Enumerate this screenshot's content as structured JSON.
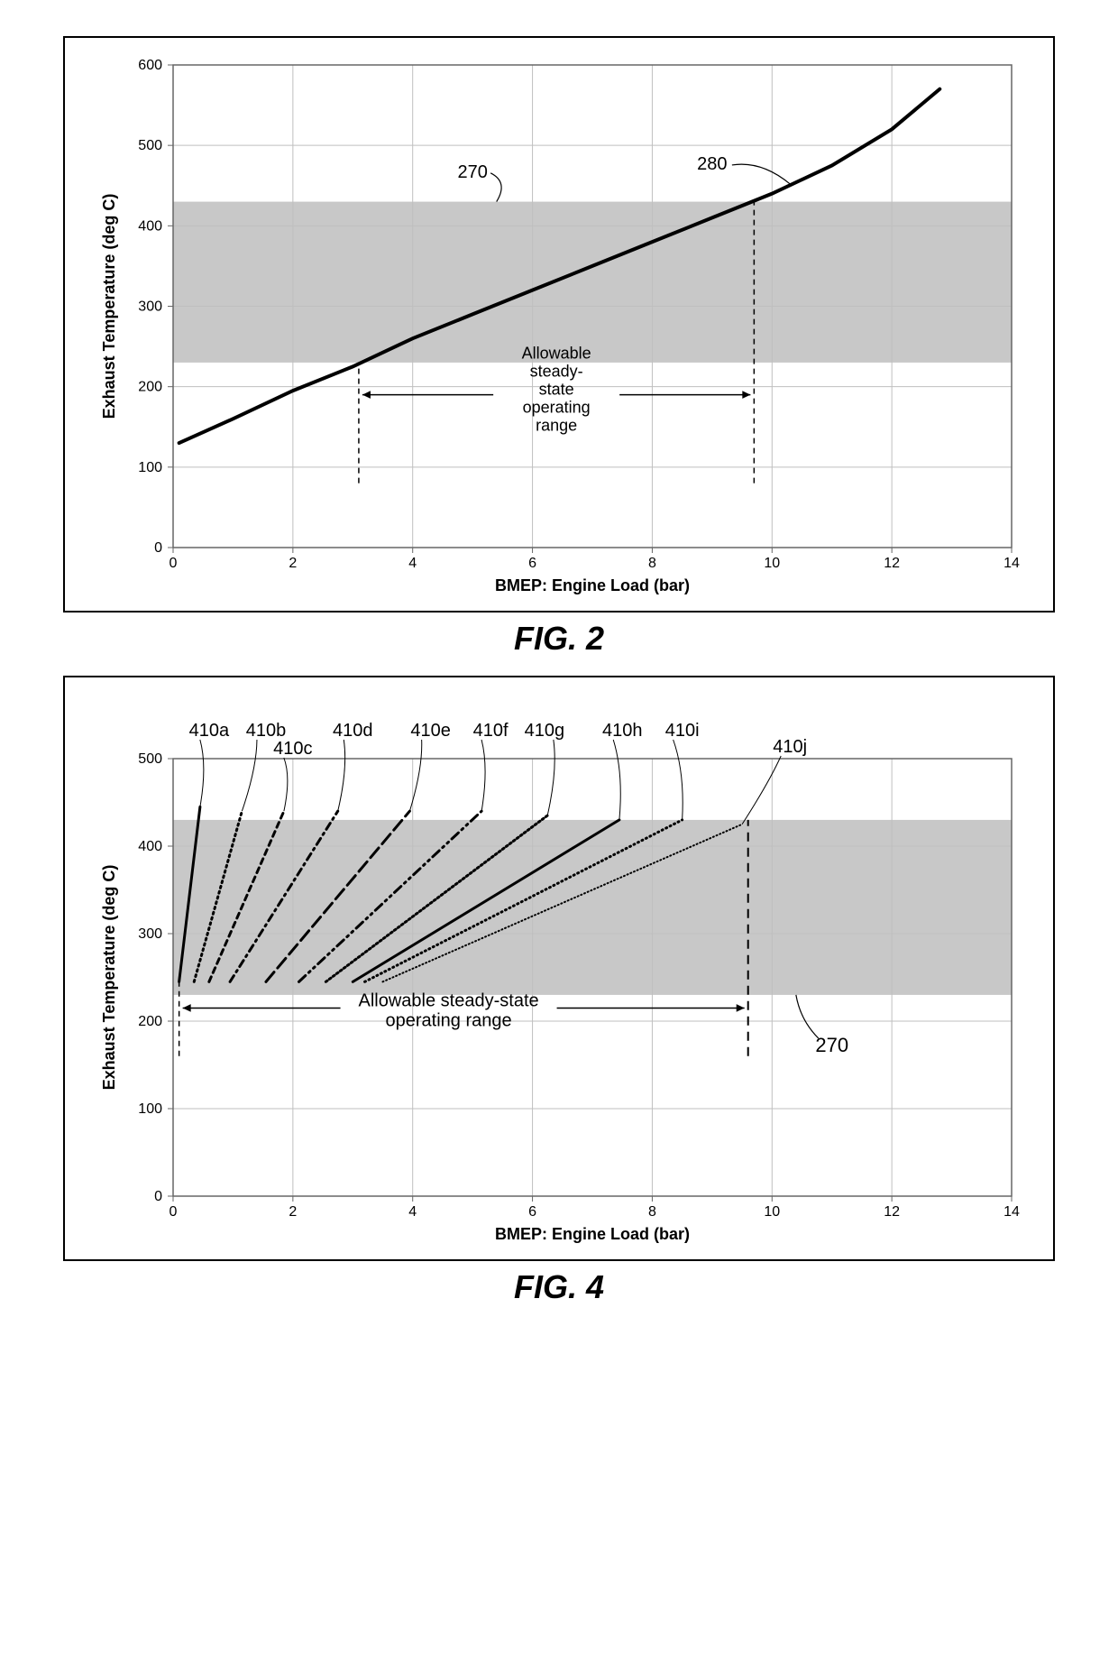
{
  "fig2": {
    "title": "FIG. 2",
    "type": "line",
    "xlabel": "BMEP:  Engine Load (bar)",
    "ylabel": "Exhaust Temperature (deg C)",
    "xlim": [
      0,
      14
    ],
    "xtick_step": 2,
    "ylim": [
      0,
      600
    ],
    "ytick_step": 100,
    "background_color": "#ffffff",
    "grid_color": "#bfbfbf",
    "axis_color": "#666666",
    "band": {
      "ymin": 230,
      "ymax": 430,
      "fill": "#c8c8c8",
      "label_ref": "270"
    },
    "curve": {
      "label_ref": "280",
      "color": "#000000",
      "width": 4,
      "x": [
        0.1,
        1,
        2,
        3,
        4,
        5,
        6,
        7,
        8,
        9,
        10,
        11,
        12,
        12.8
      ],
      "y": [
        130,
        160,
        195,
        225,
        260,
        290,
        320,
        350,
        380,
        410,
        440,
        475,
        520,
        570
      ]
    },
    "operating_range": {
      "xmin": 3.1,
      "xmax": 9.7,
      "label": "Allowable\nsteady-\nstate\noperating\nrange",
      "arrow_y": 190
    },
    "label_fontsize": 18,
    "tick_fontsize": 16
  },
  "fig4": {
    "title": "FIG. 4",
    "type": "multi-line",
    "xlabel": "BMEP: Engine Load (bar)",
    "ylabel": "Exhaust Temperature (deg C)",
    "xlim": [
      0,
      14
    ],
    "xtick_step": 2,
    "ylim": [
      0,
      500
    ],
    "ytick_step": 100,
    "background_color": "#ffffff",
    "grid_color": "#bfbfbf",
    "axis_color": "#666666",
    "band": {
      "ymin": 230,
      "ymax": 430,
      "fill": "#c8c8c8",
      "label_ref": "270"
    },
    "series": [
      {
        "name": "410a",
        "x0": 0.1,
        "y0": 245,
        "x1": 0.45,
        "y1": 445,
        "dash": "",
        "width": 3
      },
      {
        "name": "410b",
        "x0": 0.35,
        "y0": 245,
        "x1": 1.15,
        "y1": 440,
        "dash": "2,4",
        "width": 3
      },
      {
        "name": "410c",
        "x0": 0.6,
        "y0": 245,
        "x1": 1.85,
        "y1": 440,
        "dash": "6,5",
        "width": 3
      },
      {
        "name": "410d",
        "x0": 0.95,
        "y0": 245,
        "x1": 2.75,
        "y1": 440,
        "dash": "8,5,2,5",
        "width": 3
      },
      {
        "name": "410e",
        "x0": 1.55,
        "y0": 245,
        "x1": 3.95,
        "y1": 440,
        "dash": "14,6",
        "width": 3
      },
      {
        "name": "410f",
        "x0": 2.1,
        "y0": 245,
        "x1": 5.15,
        "y1": 440,
        "dash": "10,5,2,5,2,5",
        "width": 3
      },
      {
        "name": "410g",
        "x0": 2.55,
        "y0": 245,
        "x1": 6.25,
        "y1": 435,
        "dash": "2,3",
        "width": 3
      },
      {
        "name": "410h",
        "x0": 3.0,
        "y0": 245,
        "x1": 7.45,
        "y1": 430,
        "dash": "",
        "width": 3
      },
      {
        "name": "410i",
        "x0": 3.2,
        "y0": 245,
        "x1": 8.5,
        "y1": 430,
        "dash": "1,4",
        "width": 3
      },
      {
        "name": "410j",
        "x0": 3.5,
        "y0": 245,
        "x1": 9.5,
        "y1": 425,
        "dash": "1,3",
        "width": 2
      }
    ],
    "series_color": "#000000",
    "operating_range": {
      "xmin": 0.1,
      "xmax": 9.6,
      "label": "Allowable steady-state\noperating range",
      "arrow_y": 215
    },
    "label_fontsize": 18,
    "tick_fontsize": 16
  }
}
